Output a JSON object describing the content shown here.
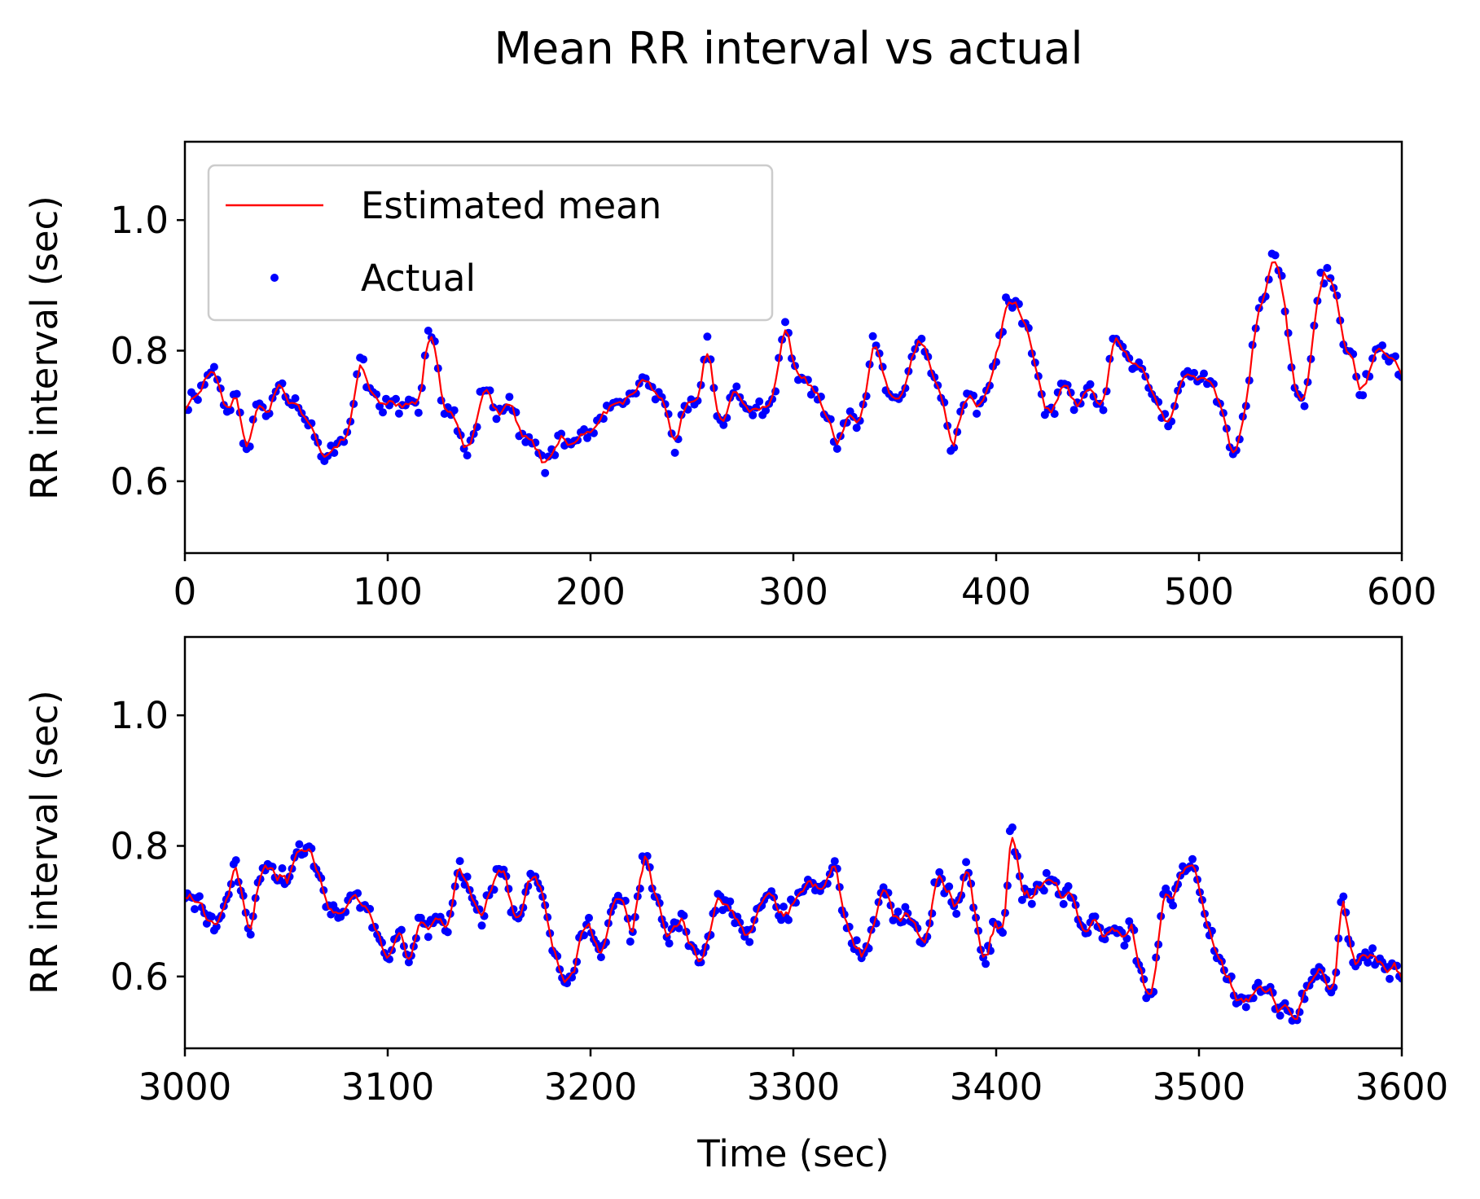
{
  "figure": {
    "title": "Mean RR interval vs actual",
    "colors": {
      "estimated": "#ff0000",
      "actual": "#0000ff",
      "axes": "#000000",
      "background": "#ffffff"
    }
  },
  "legend": {
    "placement": "upper-left",
    "entries": [
      {
        "label": "Estimated mean",
        "kind": "line",
        "color": "#ff0000"
      },
      {
        "label": "Actual",
        "kind": "marker",
        "color": "#0000ff"
      }
    ]
  },
  "chart_data": [
    {
      "type": "line",
      "panel": "top",
      "xlabel": "",
      "ylabel": "RR interval (sec)",
      "xlim": [
        0,
        600
      ],
      "ylim": [
        0.49,
        1.12
      ],
      "xticks": [
        0,
        100,
        200,
        300,
        400,
        500,
        600
      ],
      "yticks": [
        0.6,
        0.8,
        1.0
      ],
      "ytick_labels": [
        "0.6",
        "0.8",
        "1.0"
      ],
      "grid": false,
      "keyframes": [
        [
          0,
          0.72
        ],
        [
          5,
          0.74
        ],
        [
          10,
          0.76
        ],
        [
          14,
          0.78
        ],
        [
          18,
          0.73
        ],
        [
          22,
          0.7
        ],
        [
          25,
          0.74
        ],
        [
          28,
          0.67
        ],
        [
          31,
          0.63
        ],
        [
          35,
          0.73
        ],
        [
          40,
          0.7
        ],
        [
          45,
          0.76
        ],
        [
          50,
          0.74
        ],
        [
          55,
          0.72
        ],
        [
          60,
          0.7
        ],
        [
          64,
          0.67
        ],
        [
          68,
          0.61
        ],
        [
          72,
          0.66
        ],
        [
          78,
          0.64
        ],
        [
          82,
          0.72
        ],
        [
          86,
          0.81
        ],
        [
          90,
          0.72
        ],
        [
          95,
          0.74
        ],
        [
          100,
          0.72
        ],
        [
          105,
          0.7
        ],
        [
          110,
          0.74
        ],
        [
          115,
          0.7
        ],
        [
          118,
          0.8
        ],
        [
          121,
          0.85
        ],
        [
          124,
          0.78
        ],
        [
          127,
          0.68
        ],
        [
          130,
          0.7
        ],
        [
          135,
          0.67
        ],
        [
          140,
          0.64
        ],
        [
          145,
          0.74
        ],
        [
          149,
          0.77
        ],
        [
          153,
          0.7
        ],
        [
          158,
          0.72
        ],
        [
          163,
          0.7
        ],
        [
          168,
          0.65
        ],
        [
          172,
          0.65
        ],
        [
          177,
          0.62
        ],
        [
          182,
          0.65
        ],
        [
          187,
          0.66
        ],
        [
          192,
          0.66
        ],
        [
          197,
          0.68
        ],
        [
          202,
          0.67
        ],
        [
          207,
          0.71
        ],
        [
          212,
          0.72
        ],
        [
          217,
          0.7
        ],
        [
          222,
          0.74
        ],
        [
          227,
          0.76
        ],
        [
          232,
          0.72
        ],
        [
          237,
          0.7
        ],
        [
          241,
          0.65
        ],
        [
          245,
          0.7
        ],
        [
          250,
          0.73
        ],
        [
          254,
          0.75
        ],
        [
          258,
          0.83
        ],
        [
          261,
          0.72
        ],
        [
          265,
          0.68
        ],
        [
          270,
          0.74
        ],
        [
          275,
          0.72
        ],
        [
          280,
          0.71
        ],
        [
          285,
          0.71
        ],
        [
          290,
          0.7
        ],
        [
          295,
          0.87
        ],
        [
          299,
          0.77
        ],
        [
          304,
          0.74
        ],
        [
          309,
          0.75
        ],
        [
          314,
          0.72
        ],
        [
          318,
          0.67
        ],
        [
          322,
          0.63
        ],
        [
          326,
          0.7
        ],
        [
          331,
          0.7
        ],
        [
          336,
          0.75
        ],
        [
          339,
          0.84
        ],
        [
          343,
          0.78
        ],
        [
          347,
          0.73
        ],
        [
          351,
          0.74
        ],
        [
          356,
          0.77
        ],
        [
          361,
          0.81
        ],
        [
          366,
          0.78
        ],
        [
          370,
          0.74
        ],
        [
          374,
          0.71
        ],
        [
          378,
          0.62
        ],
        [
          382,
          0.72
        ],
        [
          386,
          0.72
        ],
        [
          391,
          0.72
        ],
        [
          396,
          0.76
        ],
        [
          401,
          0.8
        ],
        [
          405,
          0.89
        ],
        [
          410,
          0.86
        ],
        [
          415,
          0.83
        ],
        [
          420,
          0.76
        ],
        [
          424,
          0.68
        ],
        [
          429,
          0.72
        ],
        [
          433,
          0.76
        ],
        [
          438,
          0.71
        ],
        [
          443,
          0.73
        ],
        [
          448,
          0.72
        ],
        [
          452,
          0.7
        ],
        [
          456,
          0.8
        ],
        [
          461,
          0.81
        ],
        [
          466,
          0.76
        ],
        [
          470,
          0.78
        ],
        [
          475,
          0.75
        ],
        [
          480,
          0.71
        ],
        [
          485,
          0.68
        ],
        [
          490,
          0.74
        ],
        [
          495,
          0.77
        ],
        [
          500,
          0.76
        ],
        [
          505,
          0.75
        ],
        [
          510,
          0.7
        ],
        [
          514,
          0.65
        ],
        [
          518,
          0.64
        ],
        [
          522,
          0.71
        ],
        [
          526,
          0.82
        ],
        [
          531,
          0.88
        ],
        [
          536,
          0.96
        ],
        [
          540,
          0.9
        ],
        [
          544,
          0.8
        ],
        [
          548,
          0.7
        ],
        [
          552,
          0.72
        ],
        [
          556,
          0.82
        ],
        [
          559,
          0.93
        ],
        [
          563,
          0.92
        ],
        [
          567,
          0.9
        ],
        [
          571,
          0.78
        ],
        [
          575,
          0.8
        ],
        [
          579,
          0.72
        ],
        [
          584,
          0.78
        ],
        [
          589,
          0.8
        ],
        [
          594,
          0.79
        ],
        [
          600,
          0.76
        ]
      ]
    },
    {
      "type": "line",
      "panel": "bottom",
      "xlabel": "Time (sec)",
      "ylabel": "RR interval (sec)",
      "xlim": [
        3000,
        3600
      ],
      "ylim": [
        0.49,
        1.12
      ],
      "xticks": [
        3000,
        3100,
        3200,
        3300,
        3400,
        3500,
        3600
      ],
      "yticks": [
        0.6,
        0.8,
        1.0
      ],
      "ytick_labels": [
        "0.6",
        "0.8",
        "1.0"
      ],
      "grid": false,
      "keyframes": [
        [
          3000,
          0.72
        ],
        [
          3005,
          0.71
        ],
        [
          3010,
          0.7
        ],
        [
          3015,
          0.67
        ],
        [
          3020,
          0.72
        ],
        [
          3024,
          0.78
        ],
        [
          3028,
          0.7
        ],
        [
          3032,
          0.67
        ],
        [
          3036,
          0.75
        ],
        [
          3040,
          0.77
        ],
        [
          3045,
          0.76
        ],
        [
          3050,
          0.74
        ],
        [
          3055,
          0.79
        ],
        [
          3060,
          0.8
        ],
        [
          3065,
          0.76
        ],
        [
          3070,
          0.72
        ],
        [
          3075,
          0.7
        ],
        [
          3080,
          0.7
        ],
        [
          3085,
          0.71
        ],
        [
          3090,
          0.69
        ],
        [
          3095,
          0.66
        ],
        [
          3100,
          0.61
        ],
        [
          3105,
          0.68
        ],
        [
          3110,
          0.62
        ],
        [
          3115,
          0.7
        ],
        [
          3120,
          0.67
        ],
        [
          3125,
          0.7
        ],
        [
          3130,
          0.66
        ],
        [
          3135,
          0.79
        ],
        [
          3140,
          0.72
        ],
        [
          3145,
          0.68
        ],
        [
          3150,
          0.73
        ],
        [
          3155,
          0.76
        ],
        [
          3160,
          0.72
        ],
        [
          3165,
          0.66
        ],
        [
          3170,
          0.78
        ],
        [
          3175,
          0.75
        ],
        [
          3180,
          0.66
        ],
        [
          3185,
          0.62
        ],
        [
          3190,
          0.59
        ],
        [
          3195,
          0.67
        ],
        [
          3200,
          0.68
        ],
        [
          3205,
          0.62
        ],
        [
          3210,
          0.7
        ],
        [
          3215,
          0.73
        ],
        [
          3220,
          0.66
        ],
        [
          3226,
          0.81
        ],
        [
          3230,
          0.72
        ],
        [
          3235,
          0.68
        ],
        [
          3240,
          0.66
        ],
        [
          3245,
          0.69
        ],
        [
          3250,
          0.64
        ],
        [
          3255,
          0.62
        ],
        [
          3260,
          0.7
        ],
        [
          3265,
          0.72
        ],
        [
          3270,
          0.69
        ],
        [
          3275,
          0.67
        ],
        [
          3280,
          0.66
        ],
        [
          3285,
          0.74
        ],
        [
          3290,
          0.71
        ],
        [
          3295,
          0.7
        ],
        [
          3300,
          0.72
        ],
        [
          3305,
          0.73
        ],
        [
          3310,
          0.72
        ],
        [
          3315,
          0.74
        ],
        [
          3320,
          0.77
        ],
        [
          3325,
          0.7
        ],
        [
          3330,
          0.65
        ],
        [
          3335,
          0.62
        ],
        [
          3340,
          0.7
        ],
        [
          3345,
          0.73
        ],
        [
          3350,
          0.68
        ],
        [
          3355,
          0.71
        ],
        [
          3360,
          0.67
        ],
        [
          3365,
          0.66
        ],
        [
          3370,
          0.76
        ],
        [
          3375,
          0.74
        ],
        [
          3380,
          0.7
        ],
        [
          3385,
          0.78
        ],
        [
          3390,
          0.66
        ],
        [
          3395,
          0.64
        ],
        [
          3400,
          0.7
        ],
        [
          3404,
          0.67
        ],
        [
          3407,
          0.85
        ],
        [
          3412,
          0.72
        ],
        [
          3417,
          0.72
        ],
        [
          3422,
          0.75
        ],
        [
          3427,
          0.75
        ],
        [
          3432,
          0.73
        ],
        [
          3437,
          0.72
        ],
        [
          3442,
          0.68
        ],
        [
          3447,
          0.69
        ],
        [
          3452,
          0.67
        ],
        [
          3457,
          0.67
        ],
        [
          3462,
          0.66
        ],
        [
          3467,
          0.67
        ],
        [
          3472,
          0.57
        ],
        [
          3477,
          0.58
        ],
        [
          3482,
          0.72
        ],
        [
          3487,
          0.72
        ],
        [
          3492,
          0.76
        ],
        [
          3497,
          0.78
        ],
        [
          3502,
          0.7
        ],
        [
          3507,
          0.65
        ],
        [
          3512,
          0.6
        ],
        [
          3517,
          0.58
        ],
        [
          3522,
          0.57
        ],
        [
          3527,
          0.57
        ],
        [
          3532,
          0.59
        ],
        [
          3537,
          0.56
        ],
        [
          3542,
          0.55
        ],
        [
          3547,
          0.54
        ],
        [
          3552,
          0.57
        ],
        [
          3557,
          0.62
        ],
        [
          3562,
          0.58
        ],
        [
          3567,
          0.57
        ],
        [
          3570,
          0.75
        ],
        [
          3575,
          0.63
        ],
        [
          3580,
          0.64
        ],
        [
          3585,
          0.63
        ],
        [
          3590,
          0.62
        ],
        [
          3595,
          0.62
        ],
        [
          3600,
          0.6
        ]
      ]
    }
  ]
}
